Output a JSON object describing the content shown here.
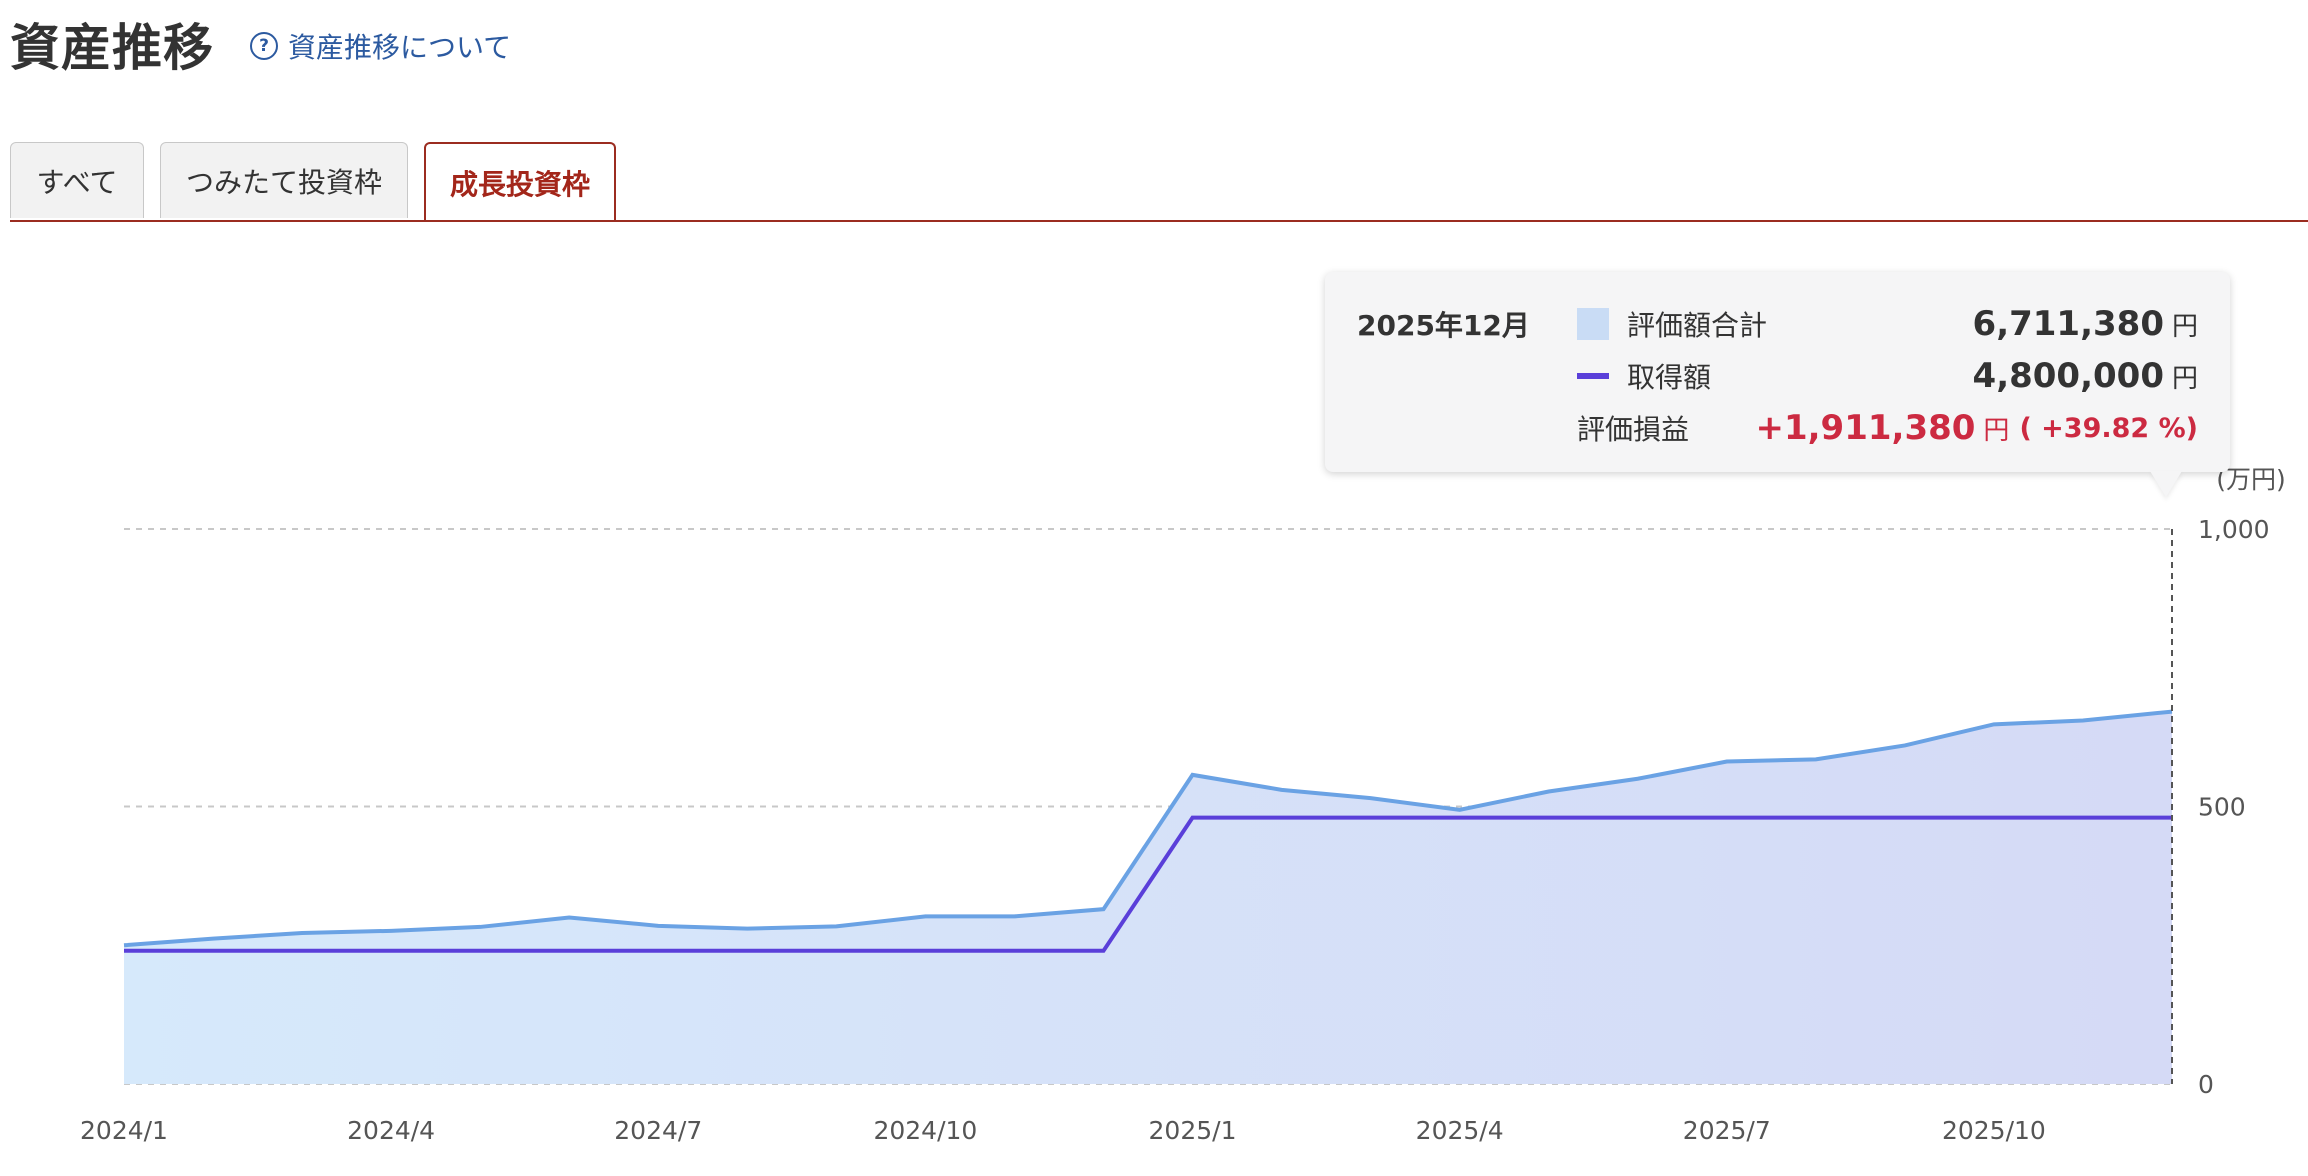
{
  "header": {
    "title": "資産推移",
    "help_link": "資産推移について",
    "help_icon": "question-circle-icon"
  },
  "tabs": [
    {
      "label": "すべて",
      "active": false
    },
    {
      "label": "つみたて投資枠",
      "active": false
    },
    {
      "label": "成長投資枠",
      "active": true
    }
  ],
  "tooltip": {
    "date": "2025年12月",
    "total_label": "評価額合計",
    "total_value": "6,711,380",
    "cost_label": "取得額",
    "cost_value": "4,800,000",
    "gain_label": "評価損益",
    "gain_value": "+1,911,380",
    "gain_pct": "( +39.82 %)",
    "unit": "円"
  },
  "colors": {
    "accent": "#9b2c20",
    "area_line": "#6aa2e4",
    "cost_line": "#5a3fd9",
    "gain": "#cc2a41"
  },
  "chart_data": {
    "type": "area",
    "unit": "(万円)",
    "ylim": [
      0,
      1000
    ],
    "yticks": [
      0,
      500,
      1000
    ],
    "ytick_labels": [
      "0",
      "500",
      "1,000"
    ],
    "x": [
      "2024/1",
      "2024/2",
      "2024/3",
      "2024/4",
      "2024/5",
      "2024/6",
      "2024/7",
      "2024/8",
      "2024/9",
      "2024/10",
      "2024/11",
      "2024/12",
      "2025/1",
      "2025/2",
      "2025/3",
      "2025/4",
      "2025/5",
      "2025/6",
      "2025/7",
      "2025/8",
      "2025/9",
      "2025/10",
      "2025/11",
      "2025/12"
    ],
    "xtick_labels": [
      "2024/1",
      "2024/4",
      "2024/7",
      "2024/10",
      "2025/1",
      "2025/4",
      "2025/7",
      "2025/10"
    ],
    "series": [
      {
        "name": "評価額合計",
        "kind": "area",
        "values": [
          250,
          262,
          272,
          276,
          283,
          300,
          285,
          280,
          284,
          302,
          302,
          315,
          557,
          530,
          515,
          494,
          527,
          550,
          581,
          585,
          610,
          648,
          655,
          671
        ]
      },
      {
        "name": "取得額",
        "kind": "line",
        "values": [
          240,
          240,
          240,
          240,
          240,
          240,
          240,
          240,
          240,
          240,
          240,
          240,
          480,
          480,
          480,
          480,
          480,
          480,
          480,
          480,
          480,
          480,
          480,
          480
        ]
      }
    ],
    "highlight_index": 23,
    "grid": true,
    "legend": "tooltip"
  }
}
